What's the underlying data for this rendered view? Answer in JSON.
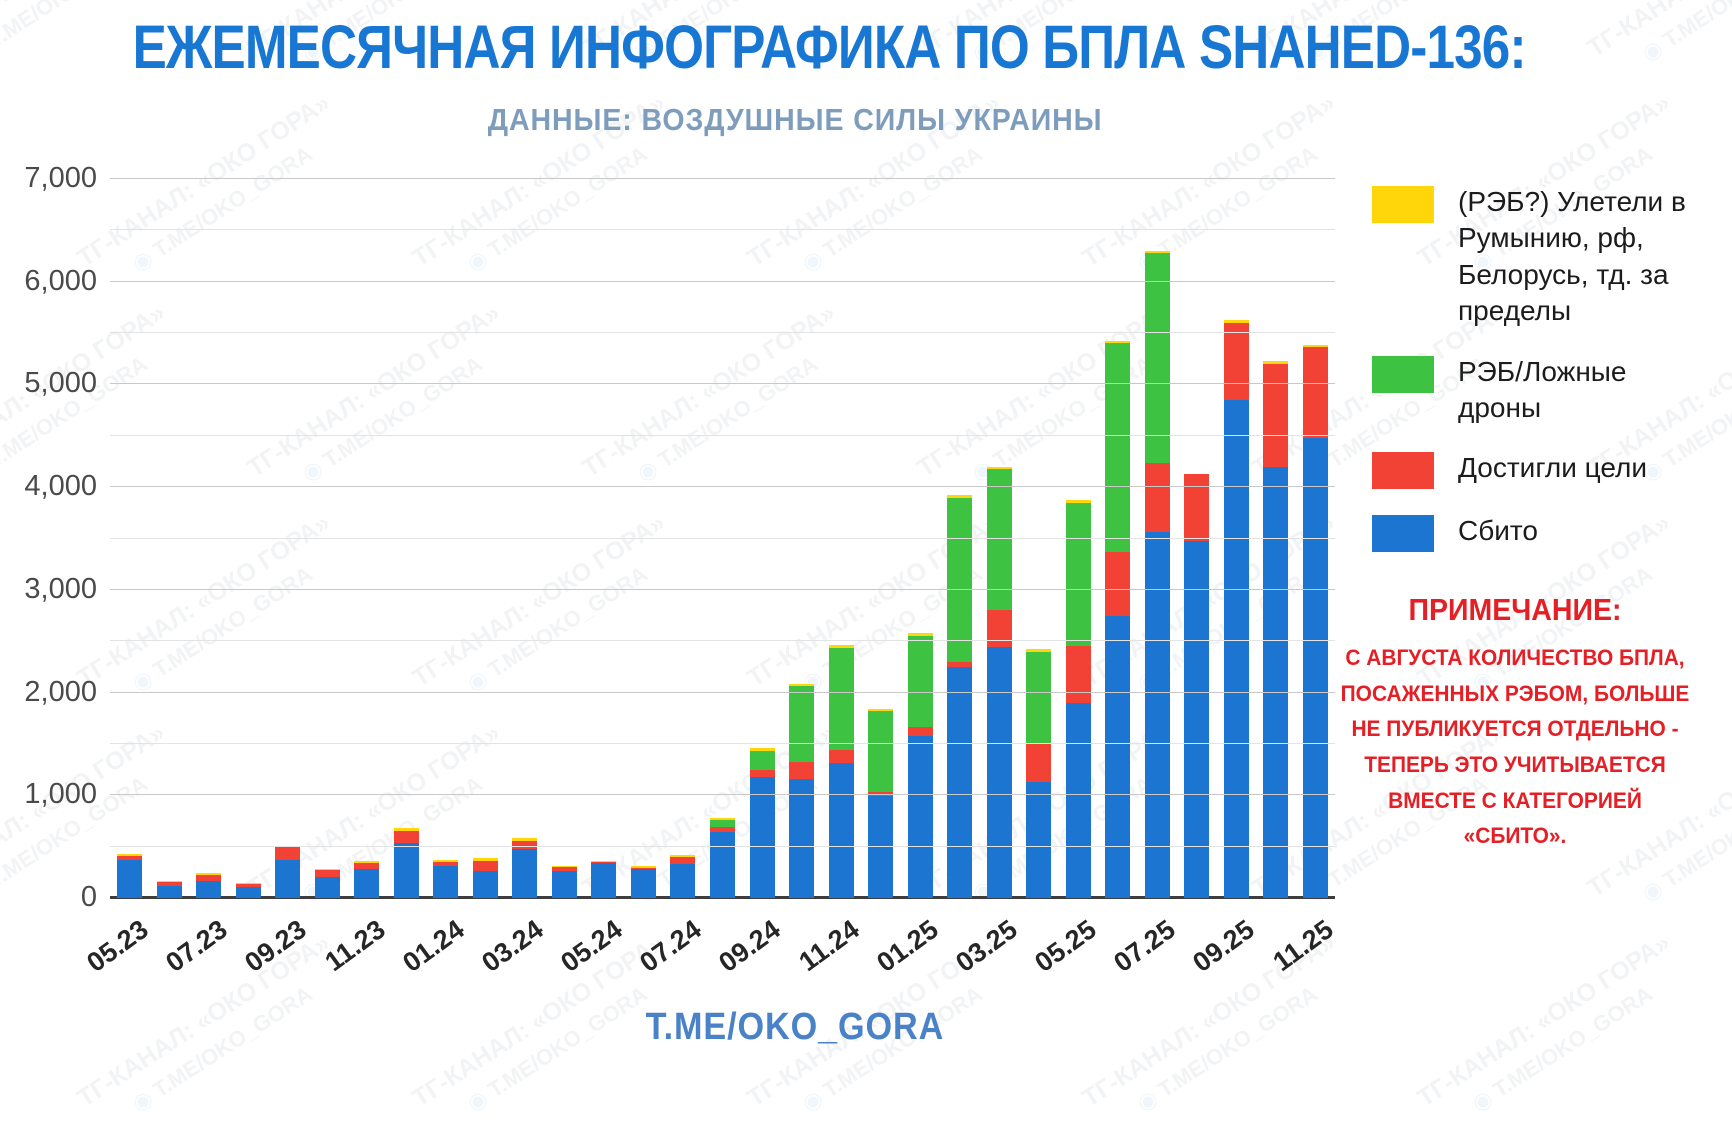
{
  "page": {
    "title": "ЕЖЕМЕСЯЧНАЯ ИНФОГРАФИКА ПО БПЛА SHAHED-136:",
    "subtitle": "ДАННЫЕ: ВОЗДУШНЫЕ СИЛЫ УКРАИНЫ",
    "footer": "T.ME/OKO_GORA",
    "watermark": {
      "line1": "ТГ-КАНАЛ: «ОКО ГОРА»",
      "line2": "T.ME/OKO_GORA"
    }
  },
  "note": {
    "heading": "ПРИМЕЧАНИЕ:",
    "body": "С АВГУСТА КОЛИЧЕСТВО БПЛА,\nПОСАЖЕННЫХ РЭБОМ, БОЛЬШЕ\nНЕ ПУБЛИКУЕТСЯ ОТДЕЛЬНО -\nТЕПЕРЬ ЭТО УЧИТЫВАЕТСЯ\nВМЕСТЕ С КАТЕГОРИЕЙ\n«СБИТО».\n"
  },
  "chart_data": {
    "type": "bar",
    "stacked": true,
    "title": "ЕЖЕМЕСЯЧНАЯ ИНФОГРАФИКА ПО БПЛА SHAHED-136:",
    "subtitle": "ДАННЫЕ: ВОЗДУШНЫЕ СИЛЫ УКРАИНЫ",
    "source_note": "ДАННЫЕ: ВОЗДУШНЫЕ СИЛЫ УКРАИНЫ",
    "xlabel": "",
    "ylabel": "",
    "ylim": [
      0,
      7000
    ],
    "grid_step": 500,
    "legend_position": "right",
    "y_tick_labels": [
      "0",
      "1,000",
      "2,000",
      "3,000",
      "4,000",
      "5,000",
      "6,000",
      "7,000"
    ],
    "x_tick_labels_shown": [
      "05.23",
      "07.23",
      "09.23",
      "11.23",
      "01.24",
      "03.24",
      "05.24",
      "07.24",
      "09.24",
      "11.24",
      "01.25",
      "03.25",
      "05.25",
      "07.25",
      "09.25",
      "11.25"
    ],
    "categories": [
      "05.23",
      "06.23",
      "07.23",
      "08.23",
      "09.23",
      "10.23",
      "11.23",
      "12.23",
      "01.24",
      "02.24",
      "03.24",
      "04.24",
      "05.24",
      "06.24",
      "07.24",
      "08.24",
      "09.24",
      "10.24",
      "11.24",
      "12.24",
      "01.25",
      "02.25",
      "03.25",
      "04.25",
      "05.25",
      "06.25",
      "07.25",
      "08.25",
      "09.25",
      "10.25",
      "11.25"
    ],
    "series": [
      {
        "name": "Сбито",
        "color": "#1b75d1",
        "values": [
          375,
          115,
          170,
          105,
          375,
          200,
          280,
          540,
          310,
          260,
          480,
          265,
          340,
          280,
          330,
          640,
          1180,
          1160,
          1315,
          990,
          1575,
          2250,
          2440,
          1130,
          1900,
          2750,
          3560,
          3480,
          4850,
          4200,
          4480
        ]
      },
      {
        "name": "Достигли цели",
        "color": "#f24236",
        "values": [
          35,
          45,
          50,
          30,
          120,
          70,
          60,
          110,
          45,
          105,
          75,
          35,
          15,
          10,
          70,
          50,
          70,
          160,
          130,
          40,
          90,
          50,
          360,
          380,
          550,
          620,
          680,
          650,
          750,
          1000,
          880
        ]
      },
      {
        "name": "РЭБ/Ложные дроны",
        "color": "#3dc242",
        "values": [
          0,
          0,
          0,
          0,
          0,
          0,
          0,
          0,
          0,
          0,
          0,
          0,
          0,
          0,
          0,
          65,
          185,
          740,
          985,
          790,
          890,
          1590,
          1380,
          890,
          1400,
          2030,
          2040,
          0,
          0,
          0,
          0
        ]
      },
      {
        "name": "(РЭБ?) Улетели в Румынию, рф, Белорусь, тд. за пределы",
        "color": "#ffd60a",
        "values": [
          15,
          10,
          20,
          15,
          15,
          15,
          20,
          30,
          20,
          25,
          25,
          15,
          10,
          20,
          15,
          25,
          25,
          20,
          35,
          20,
          25,
          30,
          20,
          20,
          25,
          20,
          20,
          0,
          30,
          25,
          25
        ]
      }
    ],
    "legend": [
      {
        "label": "(РЭБ?) Улетели в Румынию, рф, Белорусь, тд. за пределы",
        "color": "#ffd60a"
      },
      {
        "label": "РЭБ/Ложные дроны",
        "color": "#3dc242"
      },
      {
        "label": "Достигли цели",
        "color": "#f24236"
      },
      {
        "label": "Сбито",
        "color": "#1b75d1"
      }
    ]
  }
}
